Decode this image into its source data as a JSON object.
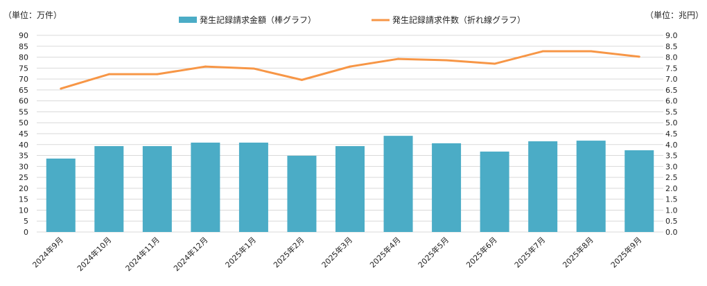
{
  "chart_data": {
    "type": "bar+line",
    "left_axis_unit": "（単位：万件）",
    "right_axis_unit": "（単位：兆円）",
    "left_ylim": [
      0,
      90
    ],
    "left_ticks": [
      "0",
      "5",
      "10",
      "15",
      "20",
      "25",
      "30",
      "35",
      "40",
      "45",
      "50",
      "55",
      "60",
      "65",
      "70",
      "75",
      "80",
      "85",
      "90"
    ],
    "right_ylim": [
      0,
      9
    ],
    "right_ticks": [
      "0.0",
      "0.5",
      "1.0",
      "1.5",
      "2.0",
      "2.5",
      "3.0",
      "3.5",
      "4.0",
      "4.5",
      "5.0",
      "5.5",
      "6.0",
      "6.5",
      "7.0",
      "7.5",
      "8.0",
      "8.5",
      "9.0"
    ],
    "categories": [
      "2024年9月",
      "2024年10月",
      "2024年11月",
      "2024年12月",
      "2025年1月",
      "2025年2月",
      "2025年3月",
      "2025年4月",
      "2025年5月",
      "2025年6月",
      "2025年7月",
      "2025年8月",
      "2025年9月"
    ],
    "grid": true,
    "legend_position": "top",
    "series": [
      {
        "name": "発生記録請求金額（棒グラフ）",
        "type": "bar",
        "axis": "right",
        "color": "#4BACC6",
        "values": [
          3.36,
          3.93,
          3.93,
          4.09,
          4.09,
          3.49,
          3.93,
          4.4,
          4.06,
          3.68,
          4.15,
          4.18,
          3.74
        ]
      },
      {
        "name": "発生記録請求件数（折れ線グラフ）",
        "type": "line",
        "axis": "left",
        "color": "#F79646",
        "values": [
          65.6,
          72.2,
          72.2,
          75.7,
          74.8,
          69.6,
          75.7,
          79.2,
          78.6,
          77.0,
          82.7,
          82.7,
          80.2
        ]
      }
    ]
  }
}
